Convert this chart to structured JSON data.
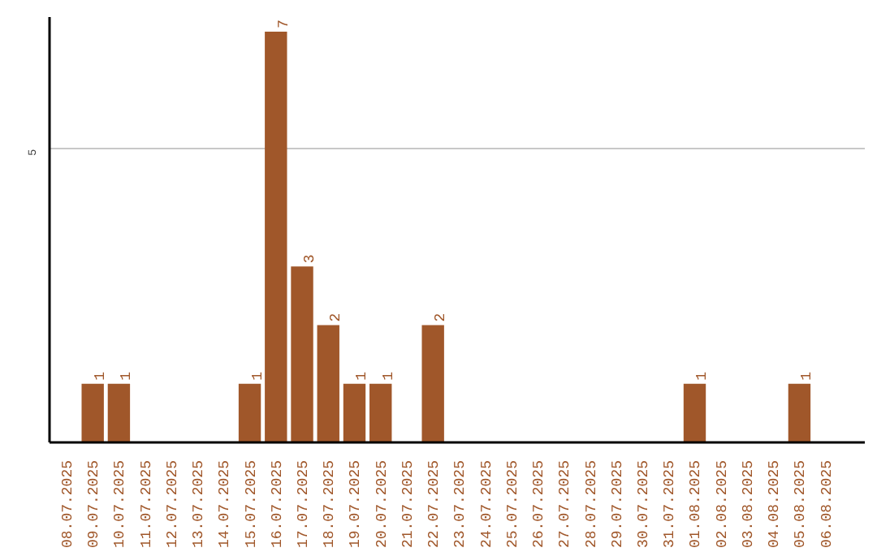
{
  "chart_data": {
    "type": "bar",
    "categories": [
      "08.07.2025",
      "09.07.2025",
      "10.07.2025",
      "11.07.2025",
      "12.07.2025",
      "13.07.2025",
      "14.07.2025",
      "15.07.2025",
      "16.07.2025",
      "17.07.2025",
      "18.07.2025",
      "19.07.2025",
      "20.07.2025",
      "21.07.2025",
      "22.07.2025",
      "23.07.2025",
      "24.07.2025",
      "25.07.2025",
      "26.07.2025",
      "27.07.2025",
      "28.07.2025",
      "29.07.2025",
      "30.07.2025",
      "31.07.2025",
      "01.08.2025",
      "02.08.2025",
      "03.08.2025",
      "04.08.2025",
      "05.08.2025",
      "06.08.2025"
    ],
    "values": [
      0,
      1,
      1,
      0,
      0,
      0,
      0,
      1,
      7,
      3,
      2,
      1,
      1,
      0,
      2,
      0,
      0,
      0,
      0,
      0,
      0,
      0,
      0,
      0,
      1,
      0,
      0,
      0,
      1,
      0
    ],
    "value_labels": [
      null,
      "1",
      "1",
      null,
      null,
      null,
      null,
      "1",
      "7",
      "3",
      "2",
      "1",
      "1",
      null,
      "2",
      null,
      null,
      null,
      null,
      null,
      null,
      null,
      null,
      null,
      "1",
      null,
      null,
      null,
      "1",
      null
    ],
    "color": "#a0572a",
    "ylim": [
      0,
      7.25
    ],
    "yticks": [
      5
    ],
    "grid": "y"
  }
}
